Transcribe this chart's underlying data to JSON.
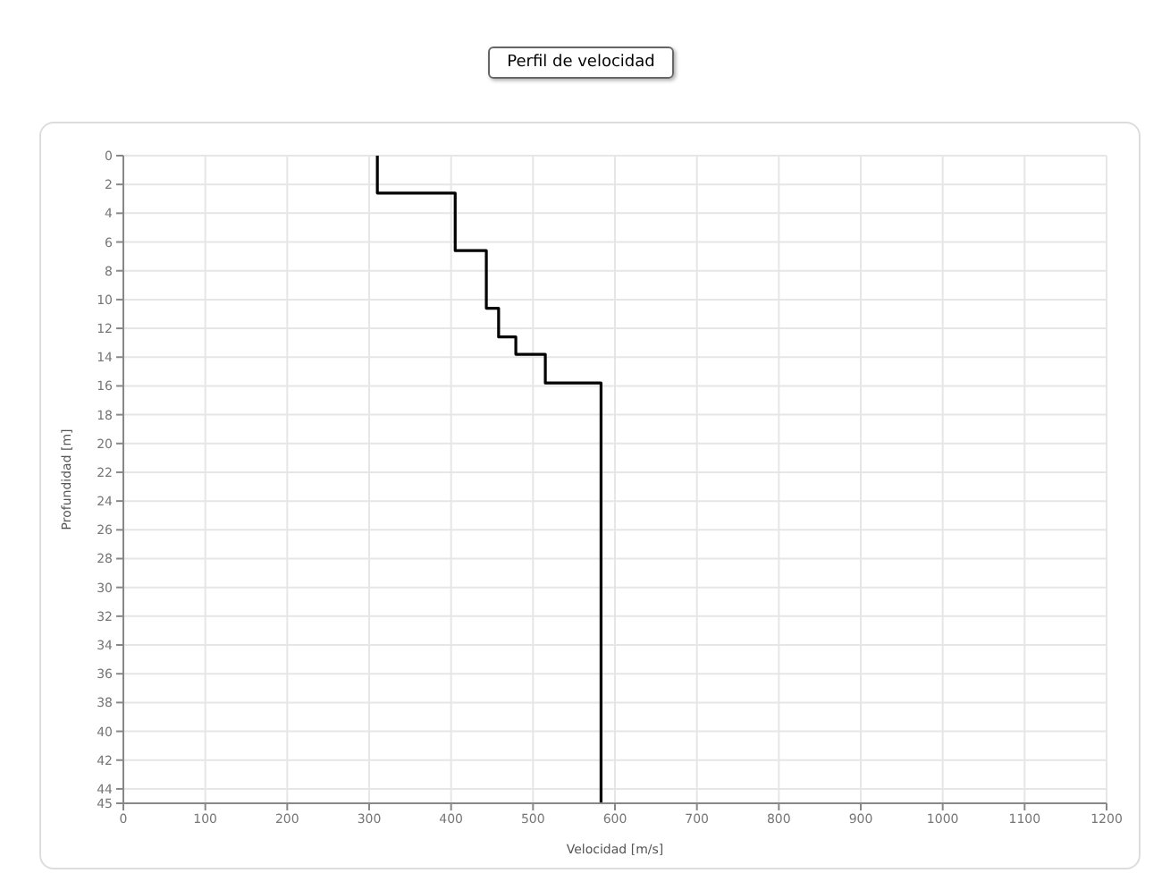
{
  "chart_data": {
    "type": "line",
    "title": "Perfil de velocidad",
    "xlabel": "Velocidad [m/s]",
    "ylabel": "Profundidad [m]",
    "x": [
      310,
      310,
      405,
      405,
      443,
      443,
      458,
      458,
      479,
      479,
      515,
      515,
      583,
      583
    ],
    "series": [
      {
        "color": "#000000",
        "values": [
          0,
          2.6,
          2.6,
          6.6,
          6.6,
          10.6,
          10.6,
          12.6,
          12.6,
          13.8,
          13.8,
          15.8,
          15.8,
          45
        ]
      }
    ],
    "xlim": [
      0,
      1200
    ],
    "xticks": [
      0,
      100,
      200,
      300,
      400,
      500,
      600,
      700,
      800,
      900,
      1000,
      1100,
      1200
    ],
    "ylim": [
      45,
      0
    ],
    "yticks": [
      0,
      2,
      4,
      6,
      8,
      10,
      12,
      14,
      16,
      18,
      20,
      22,
      24,
      26,
      28,
      30,
      32,
      34,
      36,
      38,
      40,
      42,
      44,
      45
    ],
    "grid": true,
    "marker": "none",
    "line_style": "solid"
  }
}
